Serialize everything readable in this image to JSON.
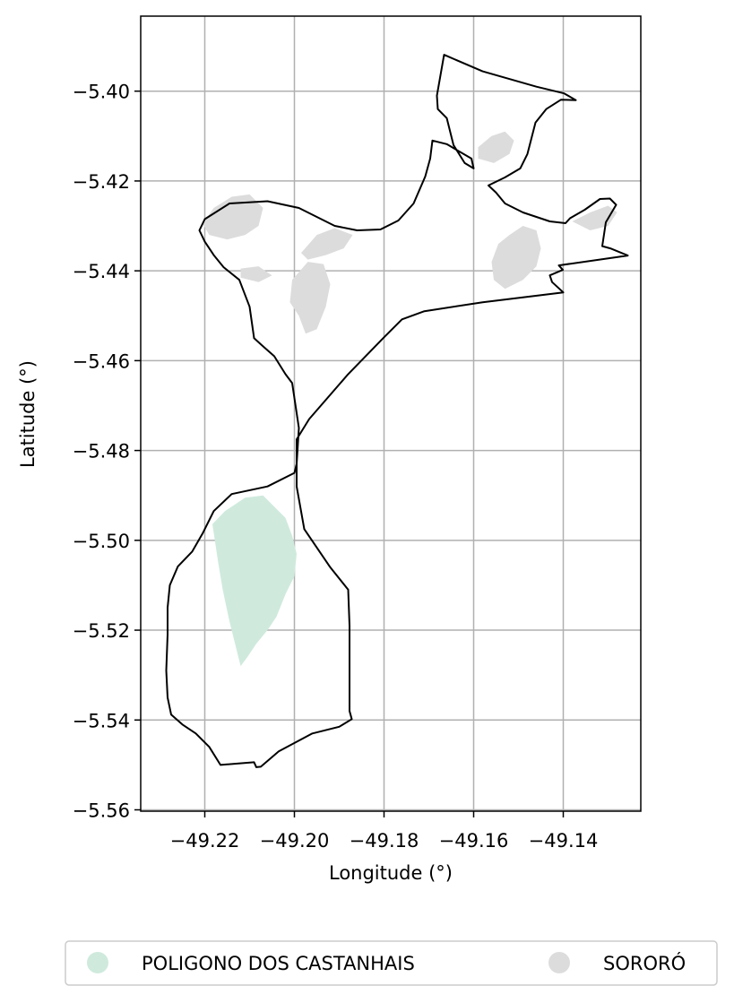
{
  "chart_data": {
    "type": "map",
    "xlabel": "Longitude (°)",
    "ylabel": "Latitude (°)",
    "xlim": [
      -49.2343,
      -49.1227
    ],
    "ylim": [
      -5.5603,
      -5.3833
    ],
    "x_ticks": [
      -49.22,
      -49.2,
      -49.18,
      -49.16,
      -49.14
    ],
    "y_ticks": [
      -5.4,
      -5.42,
      -5.44,
      -5.46,
      -5.48,
      -5.5,
      -5.52,
      -5.54,
      -5.56
    ],
    "x_tick_labels": [
      "−49.22",
      "−49.20",
      "−49.18",
      "−49.16",
      "−49.14"
    ],
    "y_tick_labels": [
      "−5.40",
      "−5.42",
      "−5.44",
      "−5.46",
      "−5.48",
      "−5.50",
      "−5.52",
      "−5.54",
      "−5.56"
    ],
    "grid": true,
    "legend_position": "bottom-center",
    "categories": [
      {
        "name": "POLIGONO DOS CASTANHAIS",
        "color": "#cfeadd"
      },
      {
        "name": "SORORÓ",
        "color": "#dcdcdc"
      }
    ],
    "boundary": [
      [
        -49.1666,
        -5.3919
      ],
      [
        -49.158,
        -5.3956
      ],
      [
        -49.146,
        -5.399
      ],
      [
        -49.1398,
        -5.4005
      ],
      [
        -49.1372,
        -5.402
      ],
      [
        -49.1405,
        -5.4019
      ],
      [
        -49.1438,
        -5.404
      ],
      [
        -49.1462,
        -5.407
      ],
      [
        -49.148,
        -5.414
      ],
      [
        -49.1496,
        -5.4172
      ],
      [
        -49.153,
        -5.4192
      ],
      [
        -49.1567,
        -5.421
      ],
      [
        -49.155,
        -5.4226
      ],
      [
        -49.153,
        -5.425
      ],
      [
        -49.149,
        -5.427
      ],
      [
        -49.143,
        -5.429
      ],
      [
        -49.1395,
        -5.4294
      ],
      [
        -49.1385,
        -5.4283
      ],
      [
        -49.1352,
        -5.4264
      ],
      [
        -49.1318,
        -5.424
      ],
      [
        -49.1296,
        -5.4239
      ],
      [
        -49.1282,
        -5.4253
      ],
      [
        -49.1305,
        -5.4292
      ],
      [
        -49.1313,
        -5.4345
      ],
      [
        -49.1295,
        -5.435
      ],
      [
        -49.1256,
        -5.4366
      ],
      [
        -49.141,
        -5.4388
      ],
      [
        -49.1401,
        -5.4398
      ],
      [
        -49.143,
        -5.441
      ],
      [
        -49.1425,
        -5.4425
      ],
      [
        -49.14,
        -5.4448
      ],
      [
        -49.158,
        -5.447
      ],
      [
        -49.171,
        -5.449
      ],
      [
        -49.176,
        -5.4508
      ],
      [
        -49.18,
        -5.4548
      ],
      [
        -49.188,
        -5.463
      ],
      [
        -49.1967,
        -5.473
      ],
      [
        -49.1995,
        -5.4775
      ],
      [
        -49.1995,
        -5.488
      ],
      [
        -49.1978,
        -5.4975
      ],
      [
        -49.192,
        -5.506
      ],
      [
        -49.188,
        -5.511
      ],
      [
        -49.1877,
        -5.519
      ],
      [
        -49.1877,
        -5.538
      ],
      [
        -49.1872,
        -5.5398
      ],
      [
        -49.19,
        -5.5415
      ],
      [
        -49.196,
        -5.543
      ],
      [
        -49.2035,
        -5.547
      ],
      [
        -49.2075,
        -5.5504
      ],
      [
        -49.2085,
        -5.5505
      ],
      [
        -49.209,
        -5.5494
      ],
      [
        -49.2165,
        -5.55
      ],
      [
        -49.219,
        -5.546
      ],
      [
        -49.222,
        -5.543
      ],
      [
        -49.225,
        -5.541
      ],
      [
        -49.2275,
        -5.5388
      ],
      [
        -49.2283,
        -5.535
      ],
      [
        -49.2286,
        -5.529
      ],
      [
        -49.2283,
        -5.521
      ],
      [
        -49.2283,
        -5.515
      ],
      [
        -49.2278,
        -5.51
      ],
      [
        -49.226,
        -5.5058
      ],
      [
        -49.2228,
        -5.5025
      ],
      [
        -49.2205,
        -5.4985
      ],
      [
        -49.218,
        -5.4935
      ],
      [
        -49.214,
        -5.4897
      ],
      [
        -49.206,
        -5.488
      ],
      [
        -49.2,
        -5.485
      ],
      [
        -49.1995,
        -5.483
      ],
      [
        -49.199,
        -5.475
      ],
      [
        -49.2005,
        -5.465
      ],
      [
        -49.202,
        -5.463
      ],
      [
        -49.2045,
        -5.459
      ],
      [
        -49.2068,
        -5.457
      ],
      [
        -49.209,
        -5.455
      ],
      [
        -49.21,
        -5.448
      ],
      [
        -49.2123,
        -5.442
      ],
      [
        -49.2158,
        -5.4392
      ],
      [
        -49.218,
        -5.4365
      ],
      [
        -49.22,
        -5.4335
      ],
      [
        -49.2212,
        -5.431
      ],
      [
        -49.22,
        -5.4285
      ],
      [
        -49.2145,
        -5.425
      ],
      [
        -49.206,
        -5.4245
      ],
      [
        -49.199,
        -5.426
      ],
      [
        -49.191,
        -5.43
      ],
      [
        -49.186,
        -5.431
      ],
      [
        -49.1808,
        -5.4308
      ],
      [
        -49.1768,
        -5.4288
      ],
      [
        -49.1734,
        -5.425
      ],
      [
        -49.1708,
        -5.419
      ],
      [
        -49.1697,
        -5.415
      ],
      [
        -49.1692,
        -5.411
      ],
      [
        -49.166,
        -5.4118
      ],
      [
        -49.1605,
        -5.415
      ],
      [
        -49.16,
        -5.4172
      ],
      [
        -49.162,
        -5.416
      ],
      [
        -49.1645,
        -5.412
      ],
      [
        -49.166,
        -5.406
      ],
      [
        -49.168,
        -5.404
      ],
      [
        -49.1682,
        -5.401
      ],
      [
        -49.1666,
        -5.3919
      ]
    ],
    "castanhais_regions": [
      [
        [
          -49.2183,
          -5.4964
        ],
        [
          -49.2155,
          -5.4935
        ],
        [
          -49.211,
          -5.4905
        ],
        [
          -49.207,
          -5.49
        ],
        [
          -49.205,
          -5.492
        ],
        [
          -49.202,
          -5.495
        ],
        [
          -49.2005,
          -5.499
        ],
        [
          -49.1995,
          -5.503
        ],
        [
          -49.2,
          -5.508
        ],
        [
          -49.202,
          -5.512
        ],
        [
          -49.204,
          -5.517
        ],
        [
          -49.206,
          -5.52
        ],
        [
          -49.2085,
          -5.523
        ],
        [
          -49.2105,
          -5.526
        ],
        [
          -49.212,
          -5.528
        ],
        [
          -49.213,
          -5.524
        ],
        [
          -49.2145,
          -5.518
        ],
        [
          -49.216,
          -5.511
        ],
        [
          -49.217,
          -5.505
        ],
        [
          -49.2183,
          -5.4964
        ]
      ]
    ],
    "sororo_regions": [
      [
        [
          -49.2205,
          -5.4295
        ],
        [
          -49.218,
          -5.426
        ],
        [
          -49.214,
          -5.4235
        ],
        [
          -49.21,
          -5.423
        ],
        [
          -49.207,
          -5.426
        ],
        [
          -49.208,
          -5.43
        ],
        [
          -49.211,
          -5.432
        ],
        [
          -49.215,
          -5.433
        ],
        [
          -49.219,
          -5.432
        ],
        [
          -49.2205,
          -5.4295
        ]
      ],
      [
        [
          -49.1985,
          -5.436
        ],
        [
          -49.195,
          -5.432
        ],
        [
          -49.191,
          -5.4305
        ],
        [
          -49.187,
          -5.432
        ],
        [
          -49.189,
          -5.435
        ],
        [
          -49.193,
          -5.4365
        ],
        [
          -49.197,
          -5.4375
        ],
        [
          -49.1985,
          -5.436
        ]
      ],
      [
        [
          -49.2005,
          -5.442
        ],
        [
          -49.197,
          -5.438
        ],
        [
          -49.1935,
          -5.4385
        ],
        [
          -49.192,
          -5.443
        ],
        [
          -49.193,
          -5.448
        ],
        [
          -49.195,
          -5.453
        ],
        [
          -49.1975,
          -5.454
        ],
        [
          -49.199,
          -5.45
        ],
        [
          -49.201,
          -5.447
        ],
        [
          -49.2005,
          -5.442
        ]
      ],
      [
        [
          -49.152,
          -5.432
        ],
        [
          -49.149,
          -5.43
        ],
        [
          -49.146,
          -5.431
        ],
        [
          -49.145,
          -5.435
        ],
        [
          -49.146,
          -5.439
        ],
        [
          -49.149,
          -5.442
        ],
        [
          -49.153,
          -5.444
        ],
        [
          -49.1555,
          -5.442
        ],
        [
          -49.156,
          -5.438
        ],
        [
          -49.1545,
          -5.434
        ],
        [
          -49.152,
          -5.432
        ]
      ],
      [
        [
          -49.159,
          -5.4125
        ],
        [
          -49.156,
          -5.41
        ],
        [
          -49.153,
          -5.409
        ],
        [
          -49.151,
          -5.411
        ],
        [
          -49.152,
          -5.414
        ],
        [
          -49.1555,
          -5.416
        ],
        [
          -49.159,
          -5.415
        ],
        [
          -49.159,
          -5.4125
        ]
      ],
      [
        [
          -49.138,
          -5.429
        ],
        [
          -49.134,
          -5.427
        ],
        [
          -49.13,
          -5.4255
        ],
        [
          -49.128,
          -5.427
        ],
        [
          -49.13,
          -5.43
        ],
        [
          -49.134,
          -5.431
        ],
        [
          -49.138,
          -5.429
        ]
      ],
      [
        [
          -49.212,
          -5.4395
        ],
        [
          -49.208,
          -5.439
        ],
        [
          -49.205,
          -5.441
        ],
        [
          -49.208,
          -5.4425
        ],
        [
          -49.212,
          -5.4415
        ],
        [
          -49.212,
          -5.4395
        ]
      ]
    ]
  }
}
